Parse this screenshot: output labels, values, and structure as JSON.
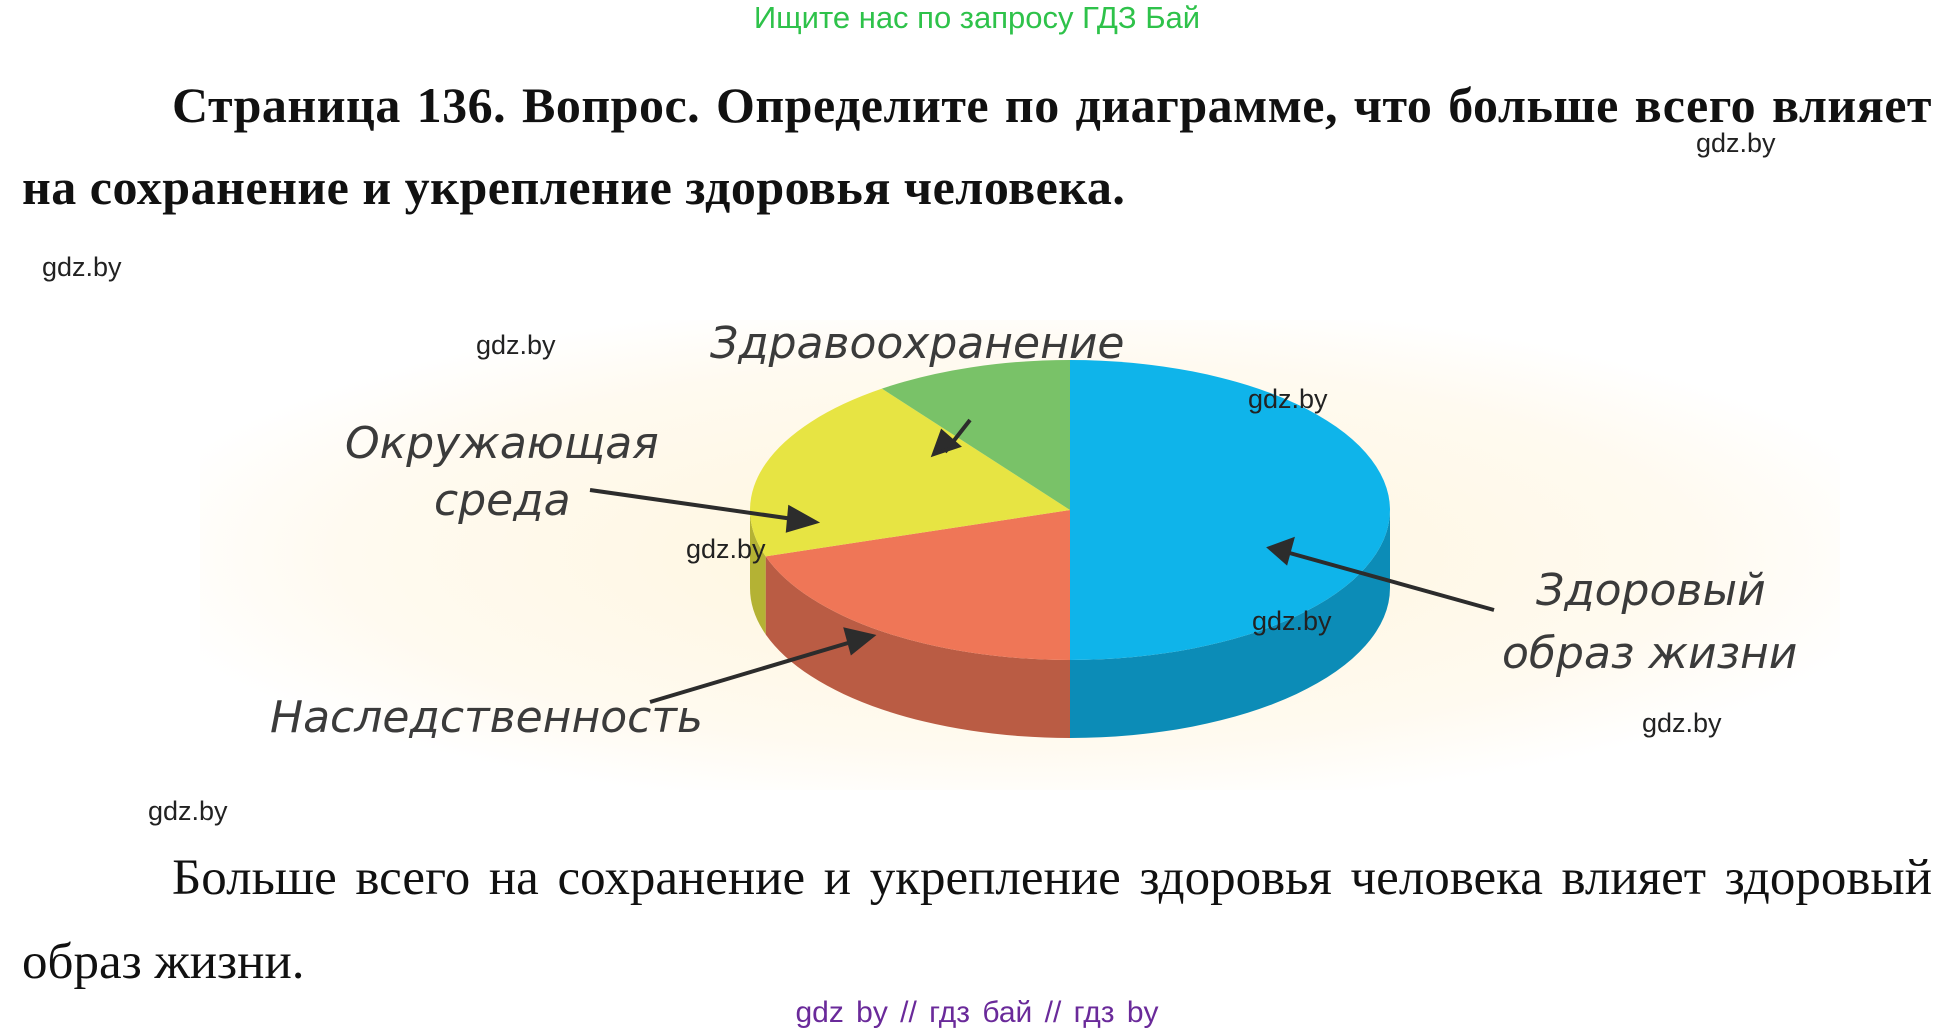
{
  "banner": "Ищите нас по запросу ГДЗ Бай",
  "question": "Страница 136. Вопрос. Определите по диаграмме, что больше всего влияет на сохранение и укрепление здоровья человека.",
  "watermark": "gdz.by",
  "answer": "Больше всего на сохранение и укрепление здоровья человека влияет здоровый образ жизни.",
  "footer": "gdz by  //  гдз бай  //  гдз by",
  "chart_data": {
    "type": "pie",
    "title": "",
    "slices": [
      {
        "label": "Здоровый образ жизни",
        "value": 50,
        "color": "#0fb4ea"
      },
      {
        "label": "Наследственность",
        "value": 20,
        "color": "#ef7657"
      },
      {
        "label": "Окружающая среда",
        "value": 20,
        "color": "#e7e443"
      },
      {
        "label": "Здравоохранение",
        "value": 10,
        "color": "#79c268"
      }
    ],
    "labels": {
      "healthcare": "Здравоохранение",
      "environment_line1": "Окружающая",
      "environment_line2": "среда",
      "lifestyle_line1": "Здоровый",
      "lifestyle_line2": "образ жизни",
      "heredity": "Наследственность"
    }
  }
}
